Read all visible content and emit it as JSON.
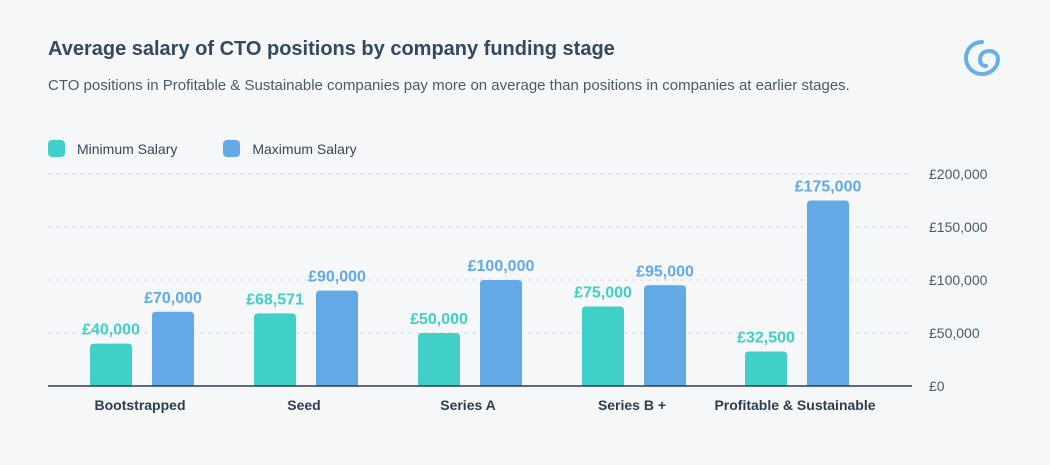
{
  "header": {
    "title": "Average salary of CTO positions by company funding stage",
    "subtitle": "CTO positions in Profitable & Sustainable companies pay more on average than positions in companies at earlier stages."
  },
  "logo": {
    "icon": "brand-logo-icon",
    "color": "#6aaee8"
  },
  "legend": {
    "items": [
      {
        "label": "Minimum Salary",
        "color": "#40d0c8"
      },
      {
        "label": "Maximum Salary",
        "color": "#62a9e6"
      }
    ]
  },
  "chart_data": {
    "type": "bar",
    "title": "Average salary of CTO positions by company funding stage",
    "subtitle": "CTO positions in Profitable & Sustainable companies pay more on average than positions in companies at earlier stages.",
    "categories": [
      "Bootstrapped",
      "Seed",
      "Series A",
      "Series B +",
      "Profitable & Sustainable"
    ],
    "series": [
      {
        "name": "Minimum Salary",
        "color": "#40d0c8",
        "values": [
          40000,
          68571,
          50000,
          75000,
          32500
        ],
        "labels": [
          "£40,000",
          "£68,571",
          "£50,000",
          "£75,000",
          "£32,500"
        ]
      },
      {
        "name": "Maximum Salary",
        "color": "#62a9e6",
        "values": [
          70000,
          90000,
          100000,
          95000,
          175000
        ],
        "labels": [
          "£70,000",
          "£90,000",
          "£100,000",
          "£95,000",
          "£175,000"
        ]
      }
    ],
    "ylim": [
      0,
      200000
    ],
    "yticks": [
      0,
      50000,
      100000,
      150000,
      200000
    ],
    "ytick_labels": [
      "£0",
      "£50,000",
      "£100,000",
      "£150,000",
      "£200,000"
    ],
    "y_axis_position": "right",
    "grid": true,
    "legend_position": "top-left"
  }
}
